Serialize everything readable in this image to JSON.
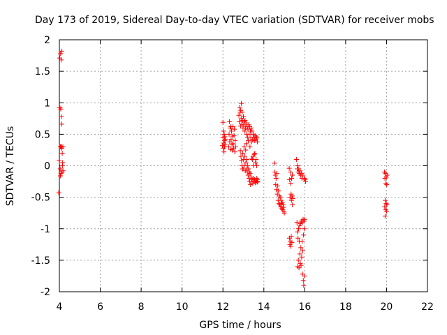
{
  "chart_data": {
    "type": "scatter",
    "title": "Day 173 of 2019, Sidereal Day-to-day VTEC variation (SDTVAR) for receiver mobs",
    "xlabel": "GPS time / hours",
    "ylabel": "SDTVAR / TECUs",
    "xlim": [
      4,
      22
    ],
    "ylim": [
      -2,
      2
    ],
    "xticks": [
      4,
      6,
      8,
      10,
      12,
      14,
      16,
      18,
      20,
      22
    ],
    "yticks": [
      -2,
      -1.5,
      -1,
      -0.5,
      0,
      0.5,
      1,
      1.5,
      2
    ],
    "xtick_labels": [
      "4",
      "6",
      "8",
      "10",
      "12",
      "14",
      "16",
      "18",
      "20",
      "22"
    ],
    "ytick_labels": [
      "-2",
      "-1.5",
      "-1",
      "-0.5",
      "0",
      "0.5",
      "1",
      "1.5",
      "2"
    ],
    "grid": true,
    "marker": "+",
    "colors": {
      "points": "#ff0000",
      "grid": "#a0a0a0",
      "axes": "#000000"
    },
    "series": [
      {
        "name": "SDTVAR",
        "points": [
          [
            3.97,
            -0.43
          ],
          [
            3.99,
            0.08
          ],
          [
            4.0,
            0.92
          ],
          [
            4.02,
            1.71
          ],
          [
            4.03,
            0.92
          ],
          [
            4.04,
            -0.05
          ],
          [
            4.05,
            0.3
          ],
          [
            4.05,
            -0.16
          ],
          [
            4.06,
            1.78
          ],
          [
            4.07,
            0.9
          ],
          [
            4.08,
            0.31
          ],
          [
            4.08,
            -0.12
          ],
          [
            4.09,
            1.68
          ],
          [
            4.1,
            0.78
          ],
          [
            4.1,
            0.3
          ],
          [
            4.11,
            1.82
          ],
          [
            4.12,
            0.66
          ],
          [
            4.12,
            0.28
          ],
          [
            4.13,
            -0.1
          ],
          [
            4.14,
            0.2
          ],
          [
            4.15,
            0.0
          ],
          [
            4.16,
            0.05
          ],
          [
            4.17,
            0.3
          ],
          [
            4.18,
            -0.08
          ],
          [
            11.98,
            0.32
          ],
          [
            12.0,
            0.69
          ],
          [
            12.0,
            0.45
          ],
          [
            12.02,
            0.28
          ],
          [
            12.03,
            0.55
          ],
          [
            12.04,
            0.36
          ],
          [
            12.05,
            0.22
          ],
          [
            12.06,
            0.5
          ],
          [
            12.07,
            0.4
          ],
          [
            12.08,
            0.3
          ],
          [
            12.09,
            0.46
          ],
          [
            12.1,
            0.34
          ],
          [
            12.12,
            0.42
          ],
          [
            12.28,
            0.3
          ],
          [
            12.3,
            0.5
          ],
          [
            12.32,
            0.7
          ],
          [
            12.33,
            0.38
          ],
          [
            12.35,
            0.6
          ],
          [
            12.37,
            0.26
          ],
          [
            12.39,
            0.62
          ],
          [
            12.4,
            0.42
          ],
          [
            12.42,
            0.55
          ],
          [
            12.44,
            0.34
          ],
          [
            12.45,
            0.25
          ],
          [
            12.47,
            0.47
          ],
          [
            12.49,
            0.62
          ],
          [
            12.5,
            0.35
          ],
          [
            12.52,
            0.28
          ],
          [
            12.54,
            0.48
          ],
          [
            12.56,
            0.58
          ],
          [
            12.58,
            0.22
          ],
          [
            12.6,
            0.4
          ],
          [
            12.62,
            0.3
          ],
          [
            12.78,
            0.8
          ],
          [
            12.8,
            0.7
          ],
          [
            12.82,
            0.93
          ],
          [
            12.84,
            0.85
          ],
          [
            12.85,
            0.24
          ],
          [
            12.86,
            0.63
          ],
          [
            12.87,
            0.88
          ],
          [
            12.88,
            0.15
          ],
          [
            12.89,
            0.75
          ],
          [
            12.9,
            0.99
          ],
          [
            12.91,
            0.08
          ],
          [
            12.92,
            0.66
          ],
          [
            12.93,
            0.0
          ],
          [
            12.94,
            0.85
          ],
          [
            12.95,
            -0.05
          ],
          [
            12.96,
            0.72
          ],
          [
            12.97,
            0.2
          ],
          [
            12.98,
            0.6
          ],
          [
            12.99,
            -0.05
          ],
          [
            13.0,
            0.78
          ],
          [
            13.01,
            0.1
          ],
          [
            13.02,
            0.65
          ],
          [
            13.03,
            0.3
          ],
          [
            13.04,
            0.7
          ],
          [
            13.05,
            0.0
          ],
          [
            13.06,
            0.55
          ],
          [
            13.07,
            0.15
          ],
          [
            13.08,
            0.72
          ],
          [
            13.09,
            -0.08
          ],
          [
            13.1,
            0.6
          ],
          [
            13.11,
            0.25
          ],
          [
            13.12,
            0.05
          ],
          [
            13.13,
            0.68
          ],
          [
            13.14,
            0.35
          ],
          [
            13.15,
            -0.05
          ],
          [
            13.16,
            0.5
          ],
          [
            13.17,
            0.1
          ],
          [
            13.18,
            0.62
          ],
          [
            13.19,
            -0.1
          ],
          [
            13.2,
            0.45
          ],
          [
            13.21,
            0.0
          ],
          [
            13.22,
            0.58
          ],
          [
            13.23,
            -0.15
          ],
          [
            13.24,
            0.4
          ],
          [
            13.25,
            -0.05
          ],
          [
            13.26,
            0.65
          ],
          [
            13.27,
            -0.2
          ],
          [
            13.28,
            0.5
          ],
          [
            13.29,
            -0.1
          ],
          [
            13.3,
            0.62
          ],
          [
            13.31,
            -0.25
          ],
          [
            13.32,
            0.3
          ],
          [
            13.33,
            -0.12
          ],
          [
            13.34,
            0.55
          ],
          [
            13.35,
            -0.3
          ],
          [
            13.36,
            0.45
          ],
          [
            13.37,
            -0.18
          ],
          [
            13.38,
            0.6
          ],
          [
            13.39,
            -0.25
          ],
          [
            13.4,
            0.38
          ],
          [
            13.41,
            0.12
          ],
          [
            13.42,
            0.55
          ],
          [
            13.43,
            -0.22
          ],
          [
            13.44,
            0.1
          ],
          [
            13.45,
            0.42
          ],
          [
            13.46,
            -0.28
          ],
          [
            13.47,
            0.15
          ],
          [
            13.48,
            0.5
          ],
          [
            13.49,
            -0.2
          ],
          [
            13.5,
            0.0
          ],
          [
            13.51,
            0.45
          ],
          [
            13.52,
            -0.25
          ],
          [
            13.53,
            0.18
          ],
          [
            13.54,
            0.4
          ],
          [
            13.55,
            -0.22
          ],
          [
            13.56,
            0.2
          ],
          [
            13.57,
            0.48
          ],
          [
            13.58,
            -0.27
          ],
          [
            13.59,
            0.05
          ],
          [
            13.6,
            0.42
          ],
          [
            13.61,
            -0.24
          ],
          [
            13.62,
            0.1
          ],
          [
            13.63,
            0.46
          ],
          [
            13.64,
            -0.2
          ],
          [
            13.65,
            0.0
          ],
          [
            13.66,
            0.44
          ],
          [
            13.67,
            -0.26
          ],
          [
            13.68,
            0.38
          ],
          [
            13.69,
            -0.22
          ],
          [
            13.7,
            -0.25
          ],
          [
            14.52,
            0.04
          ],
          [
            14.54,
            -0.1
          ],
          [
            14.56,
            -0.15
          ],
          [
            14.58,
            -0.3
          ],
          [
            14.6,
            -0.2
          ],
          [
            14.62,
            -0.38
          ],
          [
            14.64,
            -0.12
          ],
          [
            14.66,
            -0.45
          ],
          [
            14.68,
            -0.32
          ],
          [
            14.7,
            -0.55
          ],
          [
            14.72,
            -0.4
          ],
          [
            14.74,
            -0.6
          ],
          [
            14.76,
            -0.48
          ],
          [
            14.78,
            -0.62
          ],
          [
            14.8,
            -0.5
          ],
          [
            14.82,
            -0.65
          ],
          [
            14.84,
            -0.55
          ],
          [
            14.86,
            -0.6
          ],
          [
            14.88,
            -0.68
          ],
          [
            14.9,
            -0.58
          ],
          [
            14.92,
            -0.7
          ],
          [
            14.94,
            -0.62
          ],
          [
            14.96,
            -0.66
          ],
          [
            14.98,
            -0.72
          ],
          [
            15.0,
            -0.75
          ],
          [
            15.24,
            -0.04
          ],
          [
            15.25,
            -1.15
          ],
          [
            15.26,
            -0.22
          ],
          [
            15.27,
            -1.25
          ],
          [
            15.28,
            -0.5
          ],
          [
            15.29,
            -1.2
          ],
          [
            15.3,
            -0.1
          ],
          [
            15.31,
            -1.28
          ],
          [
            15.32,
            -0.28
          ],
          [
            15.33,
            -0.45
          ],
          [
            15.34,
            -1.12
          ],
          [
            15.35,
            -0.55
          ],
          [
            15.36,
            -0.2
          ],
          [
            15.37,
            -1.22
          ],
          [
            15.38,
            -0.48
          ],
          [
            15.39,
            -0.15
          ],
          [
            15.4,
            -0.62
          ],
          [
            15.42,
            -0.52
          ],
          [
            15.6,
            0.1
          ],
          [
            15.62,
            -0.9
          ],
          [
            15.63,
            -0.05
          ],
          [
            15.64,
            -1.05
          ],
          [
            15.65,
            -1.6
          ],
          [
            15.66,
            0.0
          ],
          [
            15.67,
            -1.15
          ],
          [
            15.68,
            -0.1
          ],
          [
            15.69,
            -1.5
          ],
          [
            15.7,
            -1.0
          ],
          [
            15.71,
            -0.05
          ],
          [
            15.72,
            -1.62
          ],
          [
            15.73,
            -1.2
          ],
          [
            15.74,
            -0.12
          ],
          [
            15.75,
            -0.95
          ],
          [
            15.76,
            -1.4
          ],
          [
            15.77,
            -0.08
          ],
          [
            15.78,
            -1.55
          ],
          [
            15.79,
            -0.92
          ],
          [
            15.8,
            -0.15
          ],
          [
            15.81,
            -1.3
          ],
          [
            15.82,
            -1.58
          ],
          [
            15.83,
            -0.88
          ],
          [
            15.84,
            -0.12
          ],
          [
            15.85,
            -1.45
          ],
          [
            15.86,
            -0.2
          ],
          [
            15.87,
            -1.2
          ],
          [
            15.88,
            -0.9
          ],
          [
            15.89,
            -1.72
          ],
          [
            15.9,
            -1.35
          ],
          [
            15.91,
            -0.15
          ],
          [
            15.92,
            -0.85
          ],
          [
            15.93,
            -1.82
          ],
          [
            15.94,
            -1.1
          ],
          [
            15.95,
            -1.9
          ],
          [
            15.96,
            -0.88
          ],
          [
            15.97,
            -1.0
          ],
          [
            15.98,
            -0.2
          ],
          [
            15.99,
            -1.75
          ],
          [
            16.0,
            -0.85
          ],
          [
            16.02,
            -0.22
          ],
          [
            16.04,
            -0.25
          ],
          [
            19.9,
            -0.1
          ],
          [
            19.91,
            -0.65
          ],
          [
            19.92,
            -0.2
          ],
          [
            19.93,
            -0.8
          ],
          [
            19.94,
            -0.55
          ],
          [
            19.95,
            -0.12
          ],
          [
            19.96,
            -0.7
          ],
          [
            19.97,
            -0.28
          ],
          [
            19.98,
            -0.6
          ],
          [
            19.99,
            -0.18
          ],
          [
            20.0,
            -0.72
          ],
          [
            20.01,
            -0.3
          ],
          [
            20.02,
            -0.62
          ],
          [
            20.03,
            -0.15
          ]
        ]
      }
    ]
  }
}
